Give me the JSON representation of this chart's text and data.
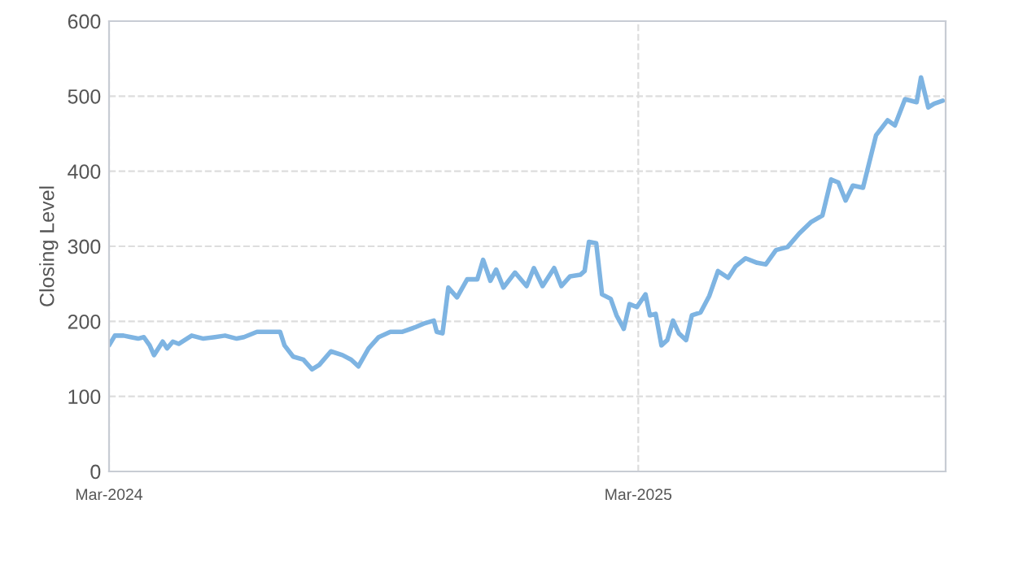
{
  "chart_data": {
    "type": "line",
    "ylabel": "Closing Level",
    "x": [
      "2024-03-01",
      "2024-03-05",
      "2024-03-11",
      "2024-03-16",
      "2024-03-21",
      "2024-03-25",
      "2024-03-29",
      "2024-04-01",
      "2024-04-07",
      "2024-04-10",
      "2024-04-14",
      "2024-04-18",
      "2024-04-27",
      "2024-05-05",
      "2024-05-13",
      "2024-05-20",
      "2024-05-28",
      "2024-06-02",
      "2024-06-11",
      "2024-06-27",
      "2024-06-30",
      "2024-07-06",
      "2024-07-13",
      "2024-07-19",
      "2024-07-24",
      "2024-08-01",
      "2024-08-09",
      "2024-08-15",
      "2024-08-20",
      "2024-08-27",
      "2024-09-03",
      "2024-09-11",
      "2024-09-19",
      "2024-09-28",
      "2024-10-04",
      "2024-10-11",
      "2024-10-13",
      "2024-10-17",
      "2024-10-21",
      "2024-10-27",
      "2024-11-03",
      "2024-11-10",
      "2024-11-14",
      "2024-11-19",
      "2024-11-23",
      "2024-11-28",
      "2024-12-06",
      "2024-12-14",
      "2024-12-19",
      "2024-12-25",
      "2025-01-02",
      "2025-01-07",
      "2025-01-13",
      "2025-01-20",
      "2025-01-23",
      "2025-01-26",
      "2025-01-31",
      "2025-02-04",
      "2025-02-10",
      "2025-02-14",
      "2025-02-19",
      "2025-02-23",
      "2025-02-28",
      "2025-03-06",
      "2025-03-09",
      "2025-03-13",
      "2025-03-17",
      "2025-03-21",
      "2025-03-25",
      "2025-03-29",
      "2025-04-03",
      "2025-04-07",
      "2025-04-13",
      "2025-04-19",
      "2025-04-25",
      "2025-05-02",
      "2025-05-07",
      "2025-05-14",
      "2025-05-22",
      "2025-05-28",
      "2025-06-04",
      "2025-06-12",
      "2025-06-20",
      "2025-06-28",
      "2025-07-06",
      "2025-07-12",
      "2025-07-17",
      "2025-07-22",
      "2025-07-27",
      "2025-08-03",
      "2025-08-12",
      "2025-08-20",
      "2025-08-25",
      "2025-09-01",
      "2025-09-09",
      "2025-09-12",
      "2025-09-17",
      "2025-09-21",
      "2025-09-27"
    ],
    "series": [
      {
        "color": "#7eb4e2",
        "values": [
          168,
          181,
          181,
          179,
          177,
          179,
          168,
          155,
          173,
          164,
          173,
          170,
          181,
          177,
          179,
          181,
          177,
          179,
          186,
          186,
          168,
          153,
          149,
          136,
          142,
          160,
          155,
          149,
          140,
          164,
          179,
          186,
          186,
          192,
          197,
          201,
          186,
          184,
          245,
          232,
          256,
          256,
          282,
          254,
          269,
          245,
          265,
          247,
          271,
          247,
          271,
          247,
          260,
          262,
          267,
          306,
          304,
          236,
          230,
          208,
          190,
          223,
          219,
          236,
          208,
          210,
          168,
          175,
          201,
          184,
          175,
          208,
          212,
          234,
          267,
          258,
          273,
          284,
          278,
          276,
          295,
          299,
          317,
          332,
          341,
          389,
          385,
          361,
          381,
          378,
          448,
          468,
          461,
          496,
          492,
          525,
          485,
          490,
          494
        ]
      }
    ],
    "xlim": [
      "2024-03-01",
      "2025-09-29"
    ],
    "xticks": [
      {
        "value": "2024-03-01",
        "label": "Mar-2024"
      },
      {
        "value": "2025-03-01",
        "label": "Mar-2025"
      }
    ],
    "ylim": [
      0,
      600
    ],
    "yticks": [
      0,
      100,
      200,
      300,
      400,
      500,
      600
    ],
    "grid": true,
    "line_style": "solid",
    "marker": "none",
    "legend": false
  }
}
